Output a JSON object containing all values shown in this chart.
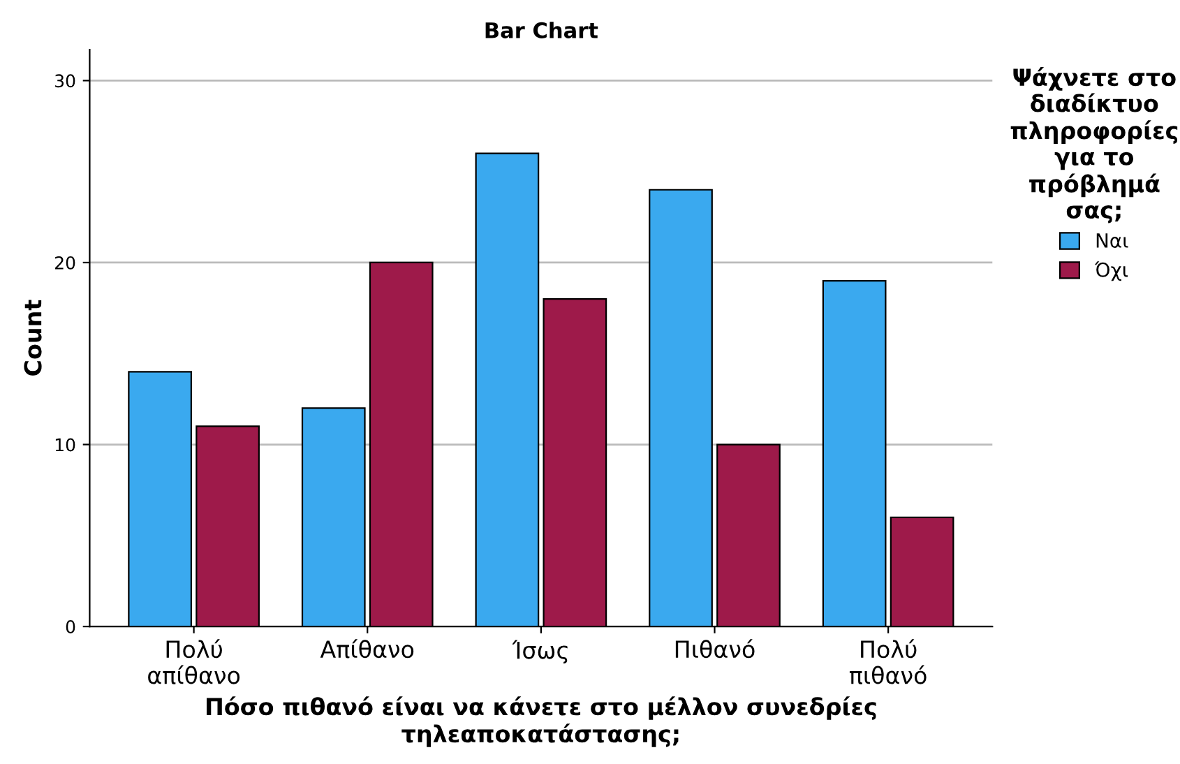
{
  "chart_data": {
    "type": "bar",
    "title": "Bar Chart",
    "xlabel": "Πόσο πιθανό είναι να κάνετε στο μέλλον συνεδρίες\nτηλεαποκατάστασης;",
    "ylabel": "Count",
    "legend_title": "Ψάχνετε στο\nδιαδίκτυο\nπληροφορίες\nγια το\nπρόβλημά\nσας;",
    "categories": [
      "Πολύ\nαπίθανο",
      "Απίθανο",
      "Ίσως",
      "Πιθανό",
      "Πολύ\nπιθανό"
    ],
    "series": [
      {
        "name": "Ναι",
        "color": "#3aa9ef",
        "values": [
          14,
          12,
          26,
          24,
          19
        ]
      },
      {
        "name": "Όχι",
        "color": "#9e1a4a",
        "values": [
          11,
          20,
          18,
          10,
          6
        ]
      }
    ],
    "ylim": [
      0,
      31.7
    ],
    "yticks": [
      0,
      10,
      20,
      30
    ],
    "grid": "y",
    "legend": "right"
  }
}
